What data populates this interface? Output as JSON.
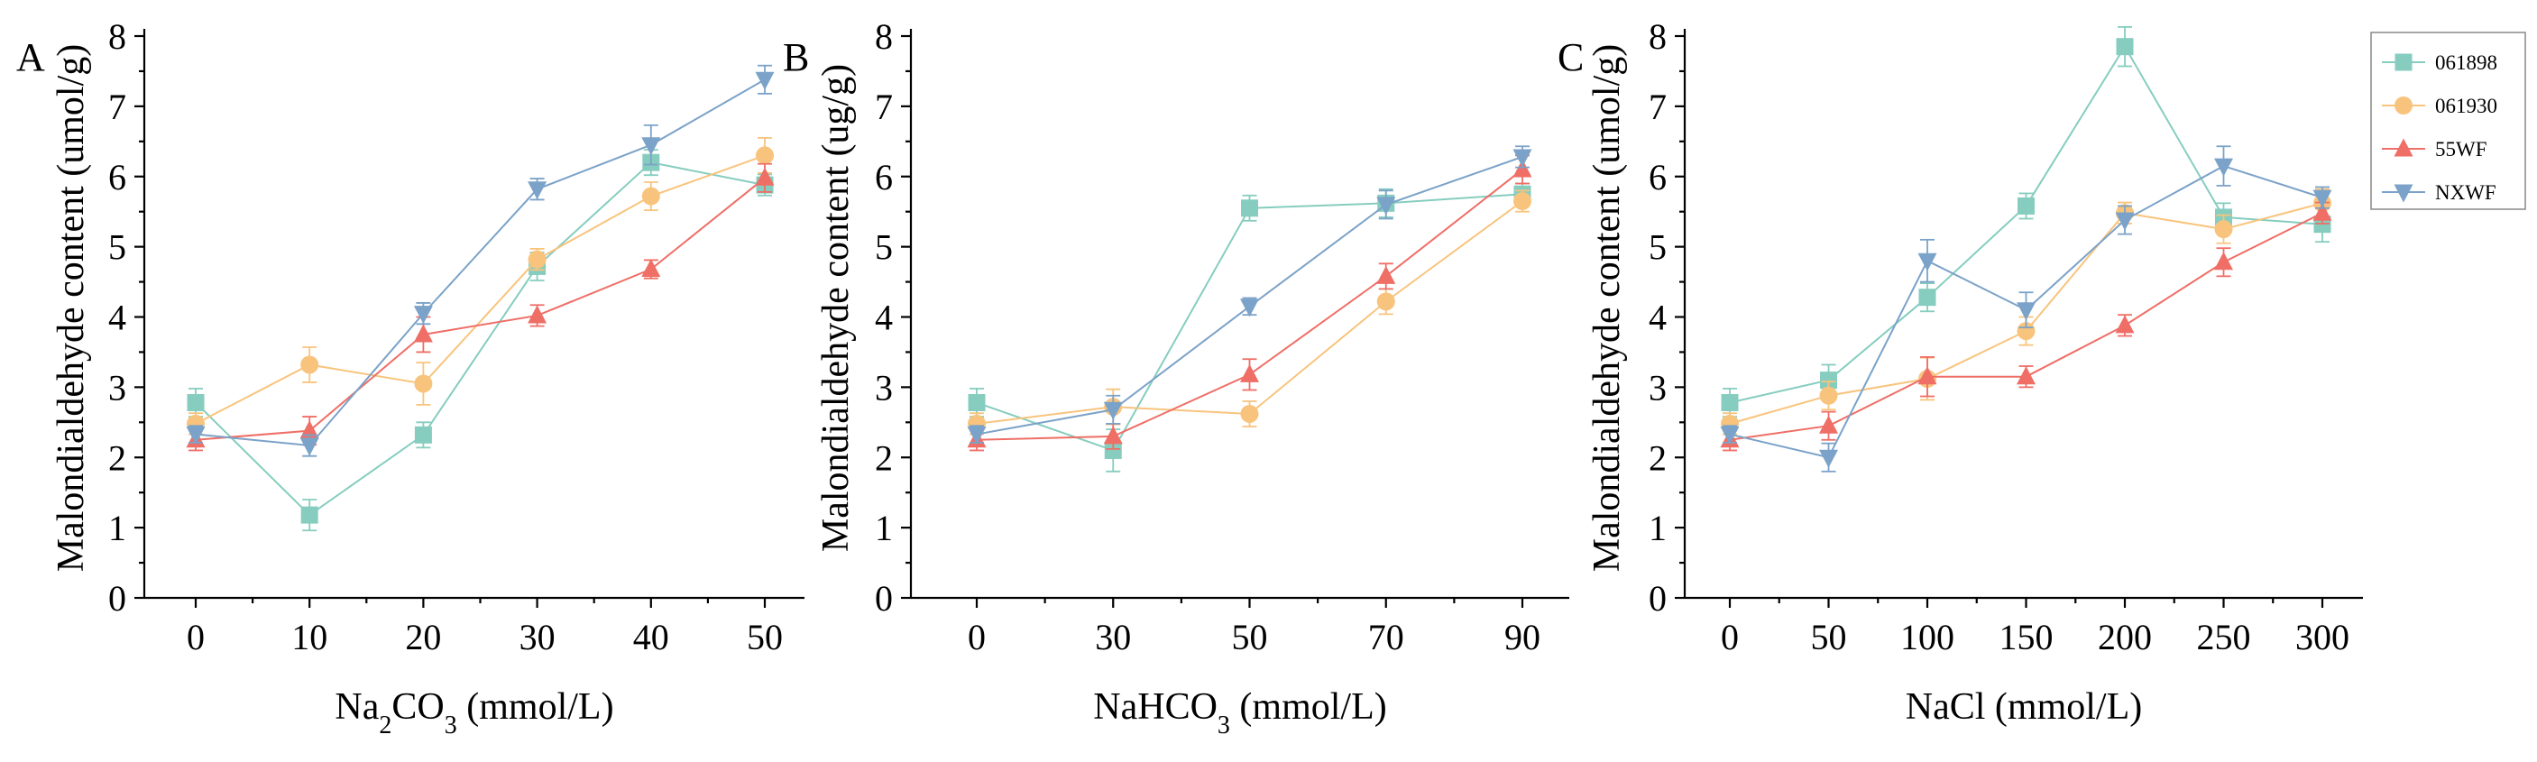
{
  "chart_data": [
    {
      "panel": "A",
      "type": "line",
      "xlabel_main": "Na",
      "xlabel_sub1": "2",
      "xlabel_mid": "CO",
      "xlabel_sub2": "3",
      "xlabel_tail": " (mmol/L)",
      "ylabel": "Malondialdehyde content (umol/g)",
      "ylim": [
        0,
        8
      ],
      "yticks": [
        "0",
        "1",
        "2",
        "3",
        "4",
        "5",
        "6",
        "7",
        "8"
      ],
      "categories": [
        "0",
        "10",
        "20",
        "30",
        "40",
        "50"
      ],
      "series": [
        {
          "name": "061898",
          "values": [
            2.78,
            1.18,
            2.32,
            4.72,
            6.2,
            5.88
          ],
          "errors": [
            0.2,
            0.22,
            0.18,
            0.2,
            0.18,
            0.15
          ]
        },
        {
          "name": "061930",
          "values": [
            2.48,
            3.32,
            3.05,
            4.82,
            5.72,
            6.3
          ],
          "errors": [
            0.15,
            0.25,
            0.3,
            0.15,
            0.2,
            0.25
          ]
        },
        {
          "name": "55WF",
          "values": [
            2.25,
            2.38,
            3.75,
            4.02,
            4.68,
            5.98
          ],
          "errors": [
            0.15,
            0.2,
            0.25,
            0.15,
            0.13,
            0.2
          ]
        },
        {
          "name": "NXWF",
          "values": [
            2.33,
            2.17,
            4.05,
            5.82,
            6.45,
            7.38
          ],
          "errors": [
            0.12,
            0.15,
            0.15,
            0.15,
            0.28,
            0.2
          ]
        }
      ]
    },
    {
      "panel": "B",
      "type": "line",
      "xlabel_main": "NaHCO",
      "xlabel_sub2": "3",
      "xlabel_tail": " (mmol/L)",
      "ylabel": "Malondialdehyde content (ug/g)",
      "ylim": [
        0,
        8
      ],
      "yticks": [
        "0",
        "1",
        "2",
        "3",
        "4",
        "5",
        "6",
        "7",
        "8"
      ],
      "categories": [
        "0",
        "30",
        "50",
        "70",
        "90"
      ],
      "series": [
        {
          "name": "061898",
          "values": [
            2.78,
            2.1,
            5.55,
            5.62,
            5.75
          ],
          "errors": [
            0.2,
            0.3,
            0.18,
            0.2,
            0.15
          ]
        },
        {
          "name": "061930",
          "values": [
            2.48,
            2.72,
            2.62,
            4.22,
            5.65
          ],
          "errors": [
            0.15,
            0.25,
            0.18,
            0.18,
            0.15
          ]
        },
        {
          "name": "55WF",
          "values": [
            2.25,
            2.3,
            3.18,
            4.58,
            6.1
          ],
          "errors": [
            0.15,
            0.18,
            0.22,
            0.18,
            0.2
          ]
        },
        {
          "name": "NXWF",
          "values": [
            2.33,
            2.68,
            4.15,
            5.6,
            6.28
          ],
          "errors": [
            0.12,
            0.2,
            0.12,
            0.2,
            0.15
          ]
        }
      ]
    },
    {
      "panel": "C",
      "type": "line",
      "xlabel_main": "NaCl",
      "xlabel_tail": " (mmol/L)",
      "ylabel": "Malondialdehyde content (umol/g)",
      "ylim": [
        0,
        8
      ],
      "yticks": [
        "0",
        "1",
        "2",
        "3",
        "4",
        "5",
        "6",
        "7",
        "8"
      ],
      "categories": [
        "0",
        "50",
        "100",
        "150",
        "200",
        "250",
        "300"
      ],
      "series": [
        {
          "name": "061898",
          "values": [
            2.78,
            3.1,
            4.28,
            5.58,
            7.85,
            5.42,
            5.32
          ],
          "errors": [
            0.2,
            0.22,
            0.2,
            0.18,
            0.28,
            0.2,
            0.25
          ]
        },
        {
          "name": "061930",
          "values": [
            2.48,
            2.88,
            3.12,
            3.8,
            5.48,
            5.25,
            5.62
          ],
          "errors": [
            0.15,
            0.2,
            0.3,
            0.2,
            0.15,
            0.2,
            0.2
          ]
        },
        {
          "name": "55WF",
          "values": [
            2.25,
            2.45,
            3.15,
            3.15,
            3.88,
            4.78,
            5.48
          ],
          "errors": [
            0.15,
            0.2,
            0.28,
            0.15,
            0.15,
            0.2,
            0.15
          ]
        },
        {
          "name": "NXWF",
          "values": [
            2.33,
            2.0,
            4.8,
            4.1,
            5.38,
            6.15,
            5.7
          ],
          "errors": [
            0.12,
            0.2,
            0.3,
            0.25,
            0.2,
            0.28,
            0.15
          ]
        }
      ]
    }
  ],
  "legend": {
    "entries": [
      "061898",
      "061930",
      "55WF",
      "NXWF"
    ],
    "colors": [
      "#86cdbf",
      "#f8c47d",
      "#ef6e66",
      "#7ba2c8"
    ],
    "markers": [
      "square",
      "circle",
      "triangle-up",
      "triangle-down"
    ]
  }
}
